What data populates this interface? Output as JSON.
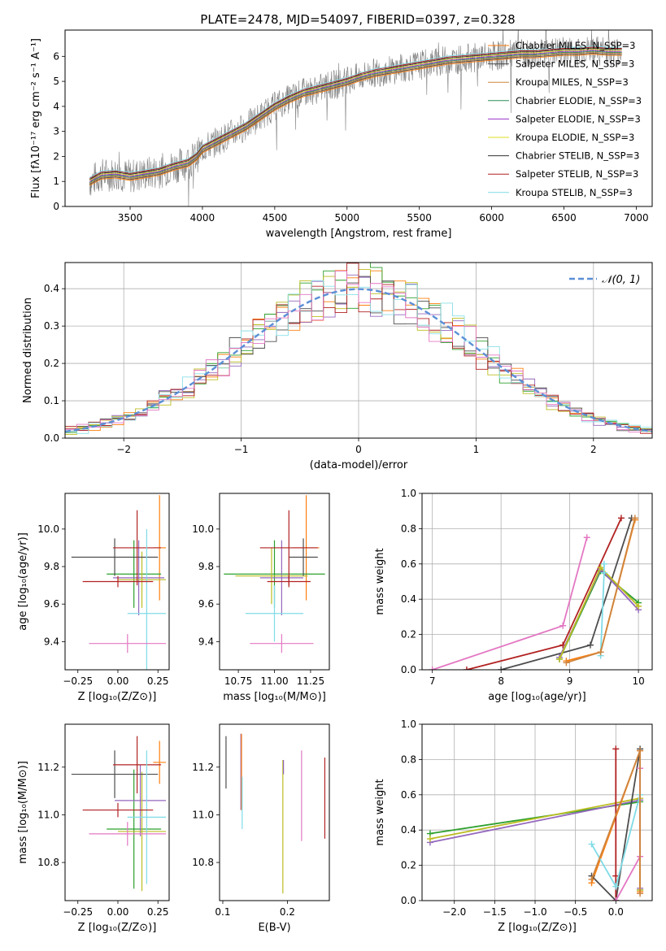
{
  "title": "PLATE=2478, MJD=54097, FIBERID=0397, z=0.328",
  "colors": {
    "data": "#808080",
    "fits": [
      "#ff7f0e",
      "#2ca02c",
      "#9467bd",
      "#bcbd22",
      "#4d4d4d",
      "#b22222",
      "#8be0e8",
      "#e377c2"
    ]
  },
  "chart_data": [
    {
      "type": "line",
      "xlabel": "wavelength [Angstrom, rest frame]",
      "ylabel": "Flux [fλ10⁻¹⁷ erg cm⁻² s⁻¹ A⁻¹]",
      "xlim": [
        3050,
        7110
      ],
      "ylim": [
        0,
        7.05
      ],
      "xticks": [
        3500,
        4000,
        4500,
        5000,
        5500,
        6000,
        6500,
        7000
      ],
      "yticks": [
        0,
        1,
        2,
        3,
        4,
        5,
        6
      ],
      "grid": false,
      "legend_position": "right",
      "legend": [
        {
          "label": "Chabrier MILES, N_SSP=3",
          "color": "#ff7f0e"
        },
        {
          "label": "Salpeter MILES, N_SSP=3",
          "color": "#4d4d4d"
        },
        {
          "label": "Kroupa MILES, N_SSP=3",
          "color": "#cd853f"
        },
        {
          "label": "Chabrier ELODIE, N_SSP=3",
          "color": "#2e8b57"
        },
        {
          "label": "Salpeter ELODIE, N_SSP=3",
          "color": "#9932cc"
        },
        {
          "label": "Kroupa ELODIE, N_SSP=3",
          "color": "#dddd22"
        },
        {
          "label": "Chabrier STELIB, N_SSP=3",
          "color": "#333333"
        },
        {
          "label": "Salpeter STELIB, N_SSP=3",
          "color": "#b22222"
        },
        {
          "label": "Kroupa STELIB, N_SSP=3",
          "color": "#7fdbe6"
        }
      ],
      "model_spectrum": {
        "x": [
          3220,
          3300,
          3400,
          3500,
          3600,
          3700,
          3800,
          3900,
          3960,
          4000,
          4100,
          4200,
          4300,
          4400,
          4500,
          4600,
          4700,
          4800,
          4900,
          5000,
          5100,
          5200,
          5300,
          5400,
          5500,
          5600,
          5700,
          5800,
          5900,
          6000,
          6100,
          6200,
          6300,
          6400,
          6500,
          6600,
          6700,
          6800,
          6900
        ],
        "y": [
          1.0,
          1.25,
          1.3,
          1.2,
          1.3,
          1.4,
          1.6,
          1.75,
          2.0,
          2.3,
          2.6,
          2.9,
          3.2,
          3.6,
          4.0,
          4.3,
          4.55,
          4.7,
          4.85,
          5.0,
          5.2,
          5.35,
          5.45,
          5.55,
          5.65,
          5.75,
          5.85,
          5.9,
          5.95,
          6.0,
          6.05,
          6.1,
          6.1,
          6.15,
          6.2,
          6.2,
          6.25,
          6.2,
          6.2
        ]
      }
    },
    {
      "type": "histogram",
      "xlabel": "(data-model)/error",
      "ylabel": "Normed distribution",
      "xlim": [
        -2.5,
        2.5
      ],
      "ylim": [
        0,
        0.47
      ],
      "xticks": [
        -2,
        -1,
        0,
        1,
        2
      ],
      "yticks": [
        0.0,
        0.1,
        0.2,
        0.3,
        0.4
      ],
      "grid": true,
      "legend_position": "top-right",
      "reference_curve": {
        "label": "𝒩(0, 1)",
        "color": "#5b8fd6"
      },
      "bin_edges": [
        -2.5,
        -2.4,
        -2.3,
        -2.2,
        -2.1,
        -2.0,
        -1.9,
        -1.8,
        -1.7,
        -1.6,
        -1.5,
        -1.4,
        -1.3,
        -1.2,
        -1.1,
        -1.0,
        -0.9,
        -0.8,
        -0.7,
        -0.6,
        -0.5,
        -0.4,
        -0.3,
        -0.2,
        -0.1,
        0.0,
        0.1,
        0.2,
        0.3,
        0.4,
        0.5,
        0.6,
        0.7,
        0.8,
        0.9,
        1.0,
        1.1,
        1.2,
        1.3,
        1.4,
        1.5,
        1.6,
        1.7,
        1.8,
        1.9,
        2.0,
        2.1,
        2.2,
        2.3,
        2.4,
        2.5
      ]
    },
    {
      "type": "scatter",
      "xlabel": "Z [log₁₀(Z/Z⊙)]",
      "ylabel": "age  [log₁₀(age/yr)]",
      "xlim": [
        -0.33,
        0.32
      ],
      "ylim": [
        9.25,
        10.19
      ],
      "xticks": [
        -0.25,
        0.0,
        0.25
      ],
      "yticks": [
        9.4,
        9.6,
        9.8,
        10.0
      ],
      "tick_labels_x": [
        "−0.25",
        "0.00",
        "0.25"
      ],
      "tick_labels_y": [
        "9.4",
        "9.6",
        "9.8",
        "10.0"
      ],
      "crosses": [
        {
          "x": 0.26,
          "xerr": 0.04,
          "y": 9.9,
          "yerr": 0.28,
          "color": "#ff7f0e"
        },
        {
          "x": 0.1,
          "xerr": 0.17,
          "y": 9.76,
          "yerr": 0.18,
          "color": "#2ca02c"
        },
        {
          "x": 0.13,
          "xerr": 0.16,
          "y": 9.74,
          "yerr": 0.2,
          "color": "#9467bd"
        },
        {
          "x": 0.15,
          "xerr": 0.15,
          "y": 9.73,
          "yerr": 0.15,
          "color": "#bcbd22"
        },
        {
          "x": -0.02,
          "xerr": 0.27,
          "y": 9.85,
          "yerr": 0.1,
          "color": "#4d4d4d"
        },
        {
          "x": 0.12,
          "xerr": 0.15,
          "y": 9.9,
          "yerr": 0.2,
          "color": "#b22222"
        },
        {
          "x": 0.18,
          "xerr": 0.12,
          "y": 9.55,
          "yerr": 0.45,
          "color": "#7fdbe6"
        },
        {
          "x": 0.06,
          "xerr": 0.24,
          "y": 9.39,
          "yerr": 0.05,
          "color": "#e377c2"
        },
        {
          "x": 0.0,
          "xerr": 0.22,
          "y": 9.72,
          "yerr": 0.03,
          "color": "#b22222"
        }
      ]
    },
    {
      "type": "scatter",
      "xlabel": "mass [log₁₀(M/M⊙)]",
      "ylabel": "",
      "xlim": [
        10.62,
        11.38
      ],
      "ylim": [
        9.25,
        10.19
      ],
      "xticks": [
        10.75,
        11.0,
        11.25
      ],
      "yticks": [
        9.4,
        9.6,
        9.8,
        10.0
      ],
      "tick_labels_x": [
        "10.75",
        "11.00",
        "11.25"
      ],
      "tick_labels_y": [
        "9.4",
        "9.6",
        "9.8",
        "10.0"
      ],
      "crosses": [
        {
          "x": 11.22,
          "xerr": 0.09,
          "y": 9.9,
          "yerr": 0.28,
          "color": "#ff7f0e"
        },
        {
          "x": 11.0,
          "xerr": 0.35,
          "y": 9.76,
          "yerr": 0.18,
          "color": "#2ca02c"
        },
        {
          "x": 11.05,
          "xerr": 0.15,
          "y": 9.74,
          "yerr": 0.2,
          "color": "#9467bd"
        },
        {
          "x": 10.98,
          "xerr": 0.25,
          "y": 9.75,
          "yerr": 0.15,
          "color": "#bcbd22"
        },
        {
          "x": 11.2,
          "xerr": 0.1,
          "y": 9.85,
          "yerr": 0.1,
          "color": "#4d4d4d"
        },
        {
          "x": 11.1,
          "xerr": 0.2,
          "y": 9.9,
          "yerr": 0.2,
          "color": "#b22222"
        },
        {
          "x": 11.0,
          "xerr": 0.2,
          "y": 9.55,
          "yerr": 0.15,
          "color": "#7fdbe6"
        },
        {
          "x": 11.05,
          "xerr": 0.22,
          "y": 9.39,
          "yerr": 0.05,
          "color": "#e377c2"
        },
        {
          "x": 11.1,
          "xerr": 0.15,
          "y": 9.72,
          "yerr": 0.03,
          "color": "#b22222"
        }
      ]
    },
    {
      "type": "line",
      "xlabel": "age  [log₁₀(age/yr)]",
      "ylabel": "mass weight",
      "xlim": [
        6.85,
        10.2
      ],
      "ylim": [
        0,
        1.0
      ],
      "xticks": [
        7,
        8,
        9,
        10
      ],
      "yticks": [
        0.0,
        0.2,
        0.4,
        0.6,
        0.8,
        1.0
      ],
      "tick_labels_x": [
        "7",
        "8",
        "9",
        "10"
      ],
      "tick_labels_y": [
        "0.0",
        "0.2",
        "0.4",
        "0.6",
        "0.8",
        "1.0"
      ],
      "grid": true,
      "series": [
        {
          "color": "#e377c2",
          "x": [
            7.0,
            8.9,
            9.25
          ],
          "y": [
            0.0,
            0.25,
            0.75
          ]
        },
        {
          "color": "#ff7f0e",
          "x": [
            8.95,
            9.45,
            9.95
          ],
          "y": [
            0.05,
            0.1,
            0.85
          ]
        },
        {
          "color": "#b22222",
          "x": [
            7.5,
            8.9,
            9.75
          ],
          "y": [
            0.0,
            0.14,
            0.86
          ]
        },
        {
          "color": "#4d4d4d",
          "x": [
            8.0,
            9.3,
            9.9
          ],
          "y": [
            0.0,
            0.14,
            0.86
          ]
        },
        {
          "color": "#2ca02c",
          "x": [
            8.85,
            9.45,
            10.0
          ],
          "y": [
            0.06,
            0.56,
            0.38
          ]
        },
        {
          "color": "#9467bd",
          "x": [
            8.85,
            9.45,
            10.0
          ],
          "y": [
            0.07,
            0.57,
            0.34
          ]
        },
        {
          "color": "#bcbd22",
          "x": [
            8.85,
            9.45,
            10.0
          ],
          "y": [
            0.06,
            0.58,
            0.36
          ]
        },
        {
          "color": "#7fdbe6",
          "x": [
            9.45,
            9.5,
            9.5
          ],
          "y": [
            0.08,
            0.55,
            0.6
          ]
        },
        {
          "color": "#cd853f",
          "x": [
            8.95,
            9.45,
            9.95
          ],
          "y": [
            0.04,
            0.1,
            0.86
          ]
        }
      ]
    },
    {
      "type": "scatter",
      "xlabel": "Z [log₁₀(Z/Z⊙)]",
      "ylabel": "mass [log₁₀(M/M⊙)]",
      "xlim": [
        -0.33,
        0.32
      ],
      "ylim": [
        10.64,
        11.38
      ],
      "xticks": [
        -0.25,
        0.0,
        0.25
      ],
      "yticks": [
        10.8,
        11.0,
        11.2
      ],
      "tick_labels_x": [
        "−0.25",
        "0.00",
        "0.25"
      ],
      "tick_labels_y": [
        "10.8",
        "11.0",
        "11.2"
      ],
      "crosses": [
        {
          "x": 0.26,
          "xerr": 0.04,
          "y": 11.22,
          "yerr": 0.09,
          "color": "#ff7f0e"
        },
        {
          "x": 0.1,
          "xerr": 0.17,
          "y": 10.94,
          "yerr": 0.25,
          "color": "#2ca02c"
        },
        {
          "x": 0.14,
          "xerr": 0.16,
          "y": 11.06,
          "yerr": 0.15,
          "color": "#9467bd"
        },
        {
          "x": 0.15,
          "xerr": 0.15,
          "y": 10.93,
          "yerr": 0.25,
          "color": "#bcbd22"
        },
        {
          "x": -0.02,
          "xerr": 0.27,
          "y": 11.17,
          "yerr": 0.1,
          "color": "#4d4d4d"
        },
        {
          "x": 0.12,
          "xerr": 0.15,
          "y": 11.21,
          "yerr": 0.12,
          "color": "#b22222"
        },
        {
          "x": 0.18,
          "xerr": 0.12,
          "y": 10.99,
          "yerr": 0.28,
          "color": "#7fdbe6"
        },
        {
          "x": 0.06,
          "xerr": 0.24,
          "y": 10.92,
          "yerr": 0.05,
          "color": "#e377c2"
        },
        {
          "x": 0.0,
          "xerr": 0.22,
          "y": 11.02,
          "yerr": 0.03,
          "color": "#b22222"
        }
      ]
    },
    {
      "type": "scatter",
      "xlabel": "E(B-V)",
      "ylabel": "",
      "xlim": [
        0.095,
        0.265
      ],
      "ylim": [
        10.64,
        11.38
      ],
      "xticks": [
        0.1,
        0.2
      ],
      "yticks": [
        10.8,
        11.0,
        11.2
      ],
      "tick_labels_x": [
        "0.1",
        "0.2"
      ],
      "tick_labels_y": [
        "10.8",
        "11.0",
        "11.2"
      ],
      "crosses": [
        {
          "x": 0.105,
          "xerr": 0,
          "y": 11.22,
          "yerr": 0.11,
          "color": "#4d4d4d"
        },
        {
          "x": 0.128,
          "xerr": 0,
          "y": 11.18,
          "yerr": 0.16,
          "color": "#9467bd"
        },
        {
          "x": 0.129,
          "xerr": 0,
          "y": 11.18,
          "yerr": 0.16,
          "color": "#ff7f0e"
        },
        {
          "x": 0.13,
          "xerr": 0,
          "y": 11.05,
          "yerr": 0.11,
          "color": "#7fdbe6"
        },
        {
          "x": 0.193,
          "xerr": 0,
          "y": 10.95,
          "yerr": 0.28,
          "color": "#bcbd22"
        },
        {
          "x": 0.194,
          "xerr": 0,
          "y": 11.2,
          "yerr": 0.03,
          "color": "#9467bd"
        },
        {
          "x": 0.222,
          "xerr": 0,
          "y": 11.08,
          "yerr": 0.19,
          "color": "#e377c2"
        },
        {
          "x": 0.258,
          "xerr": 0,
          "y": 11.07,
          "yerr": 0.17,
          "color": "#b22222"
        }
      ]
    },
    {
      "type": "line",
      "xlabel": "Z [log₁₀(Z/Z⊙)]",
      "ylabel": "mass weight",
      "xlim": [
        -2.4,
        0.45
      ],
      "ylim": [
        0,
        1.0
      ],
      "xticks": [
        -2.0,
        -1.5,
        -1.0,
        -0.5,
        0.0
      ],
      "yticks": [
        0.0,
        0.2,
        0.4,
        0.6,
        0.8,
        1.0
      ],
      "tick_labels_x": [
        "−2.0",
        "−1.5",
        "−1.0",
        "−0.5",
        "0.0"
      ],
      "tick_labels_y": [
        "0.0",
        "0.2",
        "0.4",
        "0.6",
        "0.8",
        "1.0"
      ],
      "grid": true,
      "series": [
        {
          "color": "#2ca02c",
          "x": [
            -2.3,
            0.3,
            0.3
          ],
          "y": [
            0.38,
            0.56,
            0.06
          ]
        },
        {
          "color": "#9467bd",
          "x": [
            -2.3,
            0.3,
            0.3
          ],
          "y": [
            0.33,
            0.57,
            0.07
          ]
        },
        {
          "color": "#bcbd22",
          "x": [
            -2.3,
            0.3,
            0.3
          ],
          "y": [
            0.35,
            0.58,
            0.06
          ]
        },
        {
          "color": "#ff7f0e",
          "x": [
            -0.3,
            0.3,
            0.3
          ],
          "y": [
            0.1,
            0.85,
            0.05
          ]
        },
        {
          "color": "#4d4d4d",
          "x": [
            -0.3,
            0.0,
            0.3
          ],
          "y": [
            0.14,
            0.0,
            0.86
          ]
        },
        {
          "color": "#b22222",
          "x": [
            0.0,
            0.0,
            0.0
          ],
          "y": [
            0.0,
            0.14,
            0.86
          ]
        },
        {
          "color": "#7fdbe6",
          "x": [
            -0.3,
            0.0,
            0.3
          ],
          "y": [
            0.32,
            0.08,
            0.6
          ]
        },
        {
          "color": "#e377c2",
          "x": [
            0.0,
            0.3,
            0.3
          ],
          "y": [
            0.0,
            0.25,
            0.75
          ]
        },
        {
          "color": "#cd853f",
          "x": [
            -0.3,
            0.3,
            0.3
          ],
          "y": [
            0.12,
            0.85,
            0.04
          ]
        }
      ]
    }
  ]
}
